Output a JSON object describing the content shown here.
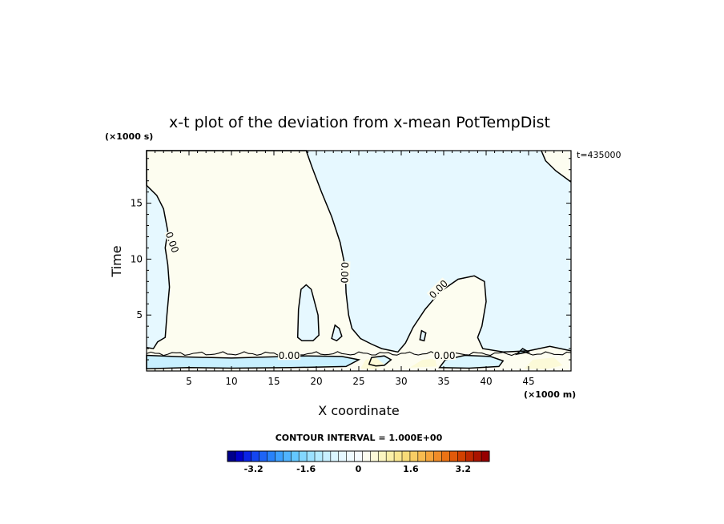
{
  "chart_data": {
    "type": "heatmap",
    "title": "x-t plot of the deviation from x-mean PotTempDist",
    "xlabel": "X coordinate",
    "ylabel": "Time",
    "x_unit": "(×1000 m)",
    "y_unit": "(×1000 s)",
    "annotation": "t=435000",
    "xlim": [
      0,
      50
    ],
    "ylim": [
      0,
      19.7
    ],
    "x_ticks": [
      5,
      10,
      15,
      20,
      25,
      30,
      35,
      40,
      45
    ],
    "y_ticks": [
      5,
      10,
      15
    ],
    "contour_level": "0.00",
    "contour_interval_text": "CONTOUR INTERVAL = 1.000E+00",
    "colorbar": {
      "min": -4.0,
      "max": 4.0,
      "tick_labels": [
        "-3.2",
        "-1.6",
        "0",
        "1.6",
        "3.2"
      ],
      "tick_values": [
        -3.2,
        -1.6,
        0,
        1.6,
        3.2
      ],
      "colors": [
        "#00008b",
        "#0000c8",
        "#0a24e6",
        "#1446f0",
        "#1e64f5",
        "#2882fa",
        "#3ca0ff",
        "#50b4ff",
        "#64c8ff",
        "#82d7ff",
        "#9be1ff",
        "#b4ebff",
        "#c8f0ff",
        "#daf6ff",
        "#e6f8ff",
        "#f0fbff",
        "#f6fcff",
        "#fdfdf0",
        "#fcfad8",
        "#fbf5c0",
        "#faefa8",
        "#f9e690",
        "#f8dc78",
        "#f8cd64",
        "#f7bb50",
        "#f5a53c",
        "#f08c28",
        "#eb7314",
        "#e15a0a",
        "#d24100",
        "#be2800",
        "#aa1400",
        "#960000"
      ]
    },
    "fill_colors": {
      "positive": "#fdfdf0",
      "negative": "#e6f8ff"
    },
    "contour_labels": [
      {
        "text": "0.00",
        "x": 3.0,
        "y": 11.5,
        "angle": 70
      },
      {
        "text": "0.00",
        "x": 23.3,
        "y": 8.8,
        "angle": 92
      },
      {
        "text": "0.00",
        "x": 34.4,
        "y": 7.3,
        "angle": -45
      },
      {
        "text": "0.00",
        "x": 16.8,
        "y": 1.35,
        "angle": 0
      },
      {
        "text": "0.00",
        "x": 35.1,
        "y": 1.35,
        "angle": 0
      }
    ]
  }
}
